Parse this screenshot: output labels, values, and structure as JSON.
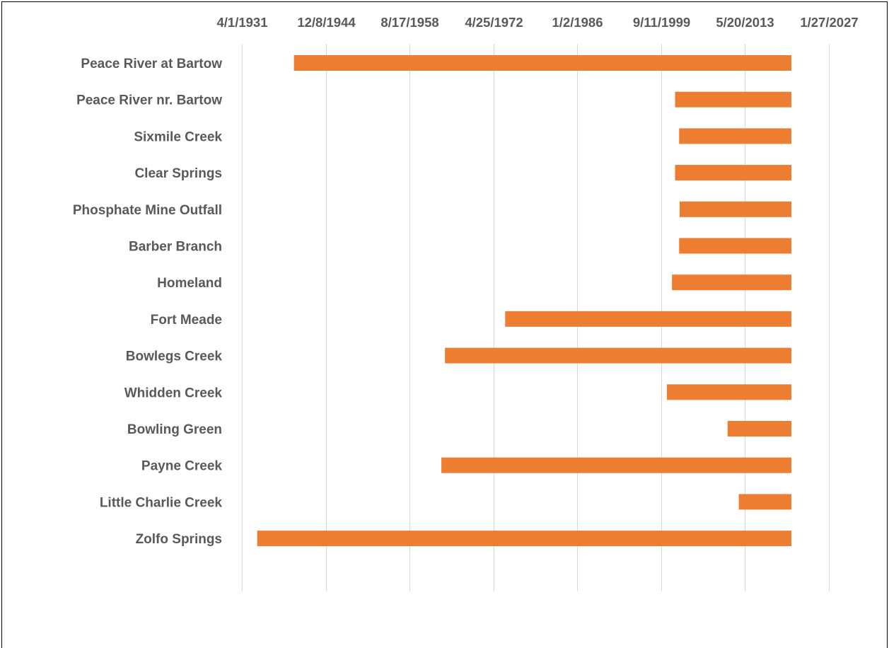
{
  "chart_data": {
    "type": "bar",
    "orientation": "horizontal",
    "title": "",
    "xlabel": "",
    "ylabel": "",
    "x_axis_type": "date",
    "x_axis_position": "top",
    "xlim": [
      "1931-04-01",
      "2040-10-04"
    ],
    "x_ticks": [
      "1931-04-01",
      "1944-12-08",
      "1958-08-17",
      "1972-04-25",
      "1986-01-02",
      "1999-09-11",
      "2013-05-20",
      "2027-01-27"
    ],
    "x_tick_labels": [
      "4/1/1931",
      "12/8/1944",
      "8/17/1958",
      "4/25/1972",
      "1/2/1986",
      "9/11/1999",
      "5/20/2013",
      "1/27/2027"
    ],
    "grid": "vertical major gridlines",
    "legend": "none",
    "bar_color": "#ED7D31",
    "categories": [
      "Peace River at Bartow",
      "Peace River nr. Bartow",
      "Sixmile Creek",
      "Clear Springs",
      "Phosphate Mine Outfall",
      "Barber Branch",
      "Homeland",
      "Fort Meade",
      "Bowlegs Creek",
      "Whidden Creek",
      "Bowling Green",
      "Payne Creek",
      "Little Charlie Creek",
      "Zolfo Springs"
    ],
    "series": [
      {
        "start": [
          "1939-10-01",
          "2002-01-01",
          "2002-09-01",
          "2002-01-01",
          "2002-10-01",
          "2002-09-01",
          "2001-07-01",
          "1974-04-01",
          "1964-06-01",
          "2000-09-01",
          "2010-08-01",
          "1963-11-01",
          "2012-06-01",
          "1933-10-01"
        ],
        "end": [
          "2020-12-31",
          "2020-12-31",
          "2020-12-31",
          "2020-12-31",
          "2020-12-31",
          "2020-12-31",
          "2020-12-31",
          "2020-12-31",
          "2020-12-31",
          "2020-12-31",
          "2020-12-31",
          "2020-12-31",
          "2020-12-31",
          "2020-12-31"
        ]
      }
    ]
  }
}
